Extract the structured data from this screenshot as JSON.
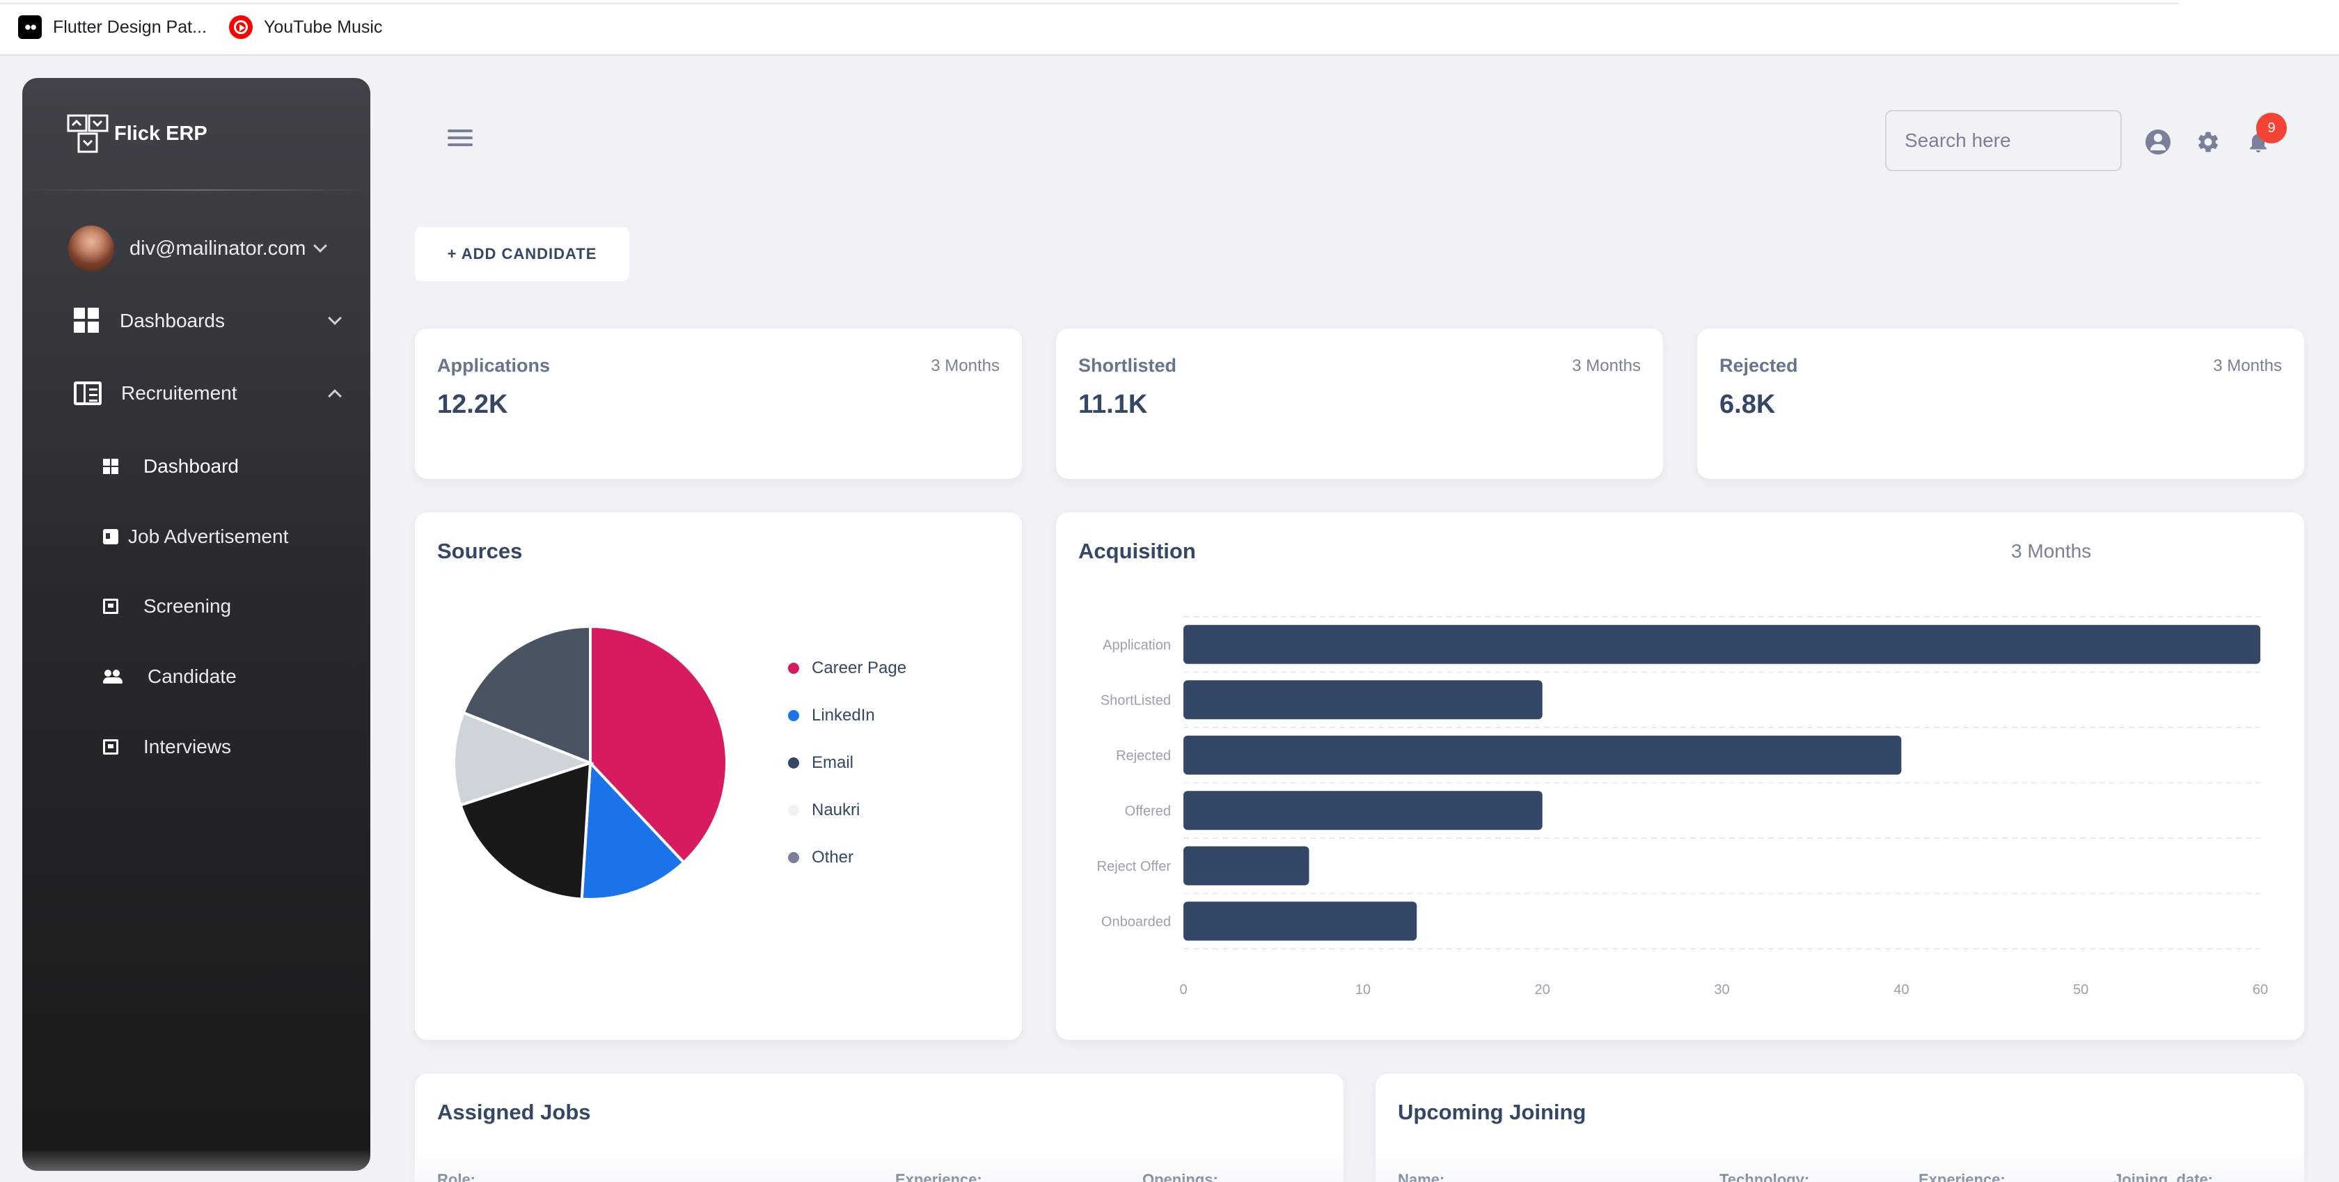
{
  "bookmarks": [
    {
      "label": "Flutter Design Pat...",
      "icon": "medium-icon"
    },
    {
      "label": "YouTube Music",
      "icon": "youtube-music-icon"
    }
  ],
  "sidebar": {
    "brand": "Flick ERP",
    "user_email": "div@mailinator.com",
    "items": [
      {
        "label": "Dashboards",
        "icon": "dashboard-icon"
      },
      {
        "label": "Recruitement",
        "icon": "recruitment-icon"
      }
    ],
    "subitems": [
      {
        "label": "Dashboard",
        "icon": "dashboard-small-icon",
        "active": true
      },
      {
        "label": "Job Advertisement",
        "icon": "card-icon"
      },
      {
        "label": "Screening",
        "icon": "frame-icon"
      },
      {
        "label": "Candidate",
        "icon": "people-icon"
      },
      {
        "label": "Interviews",
        "icon": "frame-icon"
      }
    ]
  },
  "header": {
    "search_placeholder": "Search here",
    "notification_count": "9"
  },
  "add_candidate_label": "+ ADD CANDIDATE",
  "stats": [
    {
      "title": "Applications",
      "period": "3 Months",
      "value": "12.2K"
    },
    {
      "title": "Shortlisted",
      "period": "3 Months",
      "value": "11.1K"
    },
    {
      "title": "Rejected",
      "period": "3 Months",
      "value": "6.8K"
    }
  ],
  "sources": {
    "title": "Sources"
  },
  "acquisition": {
    "title": "Acquisition",
    "period": "3 Months"
  },
  "assigned_jobs": {
    "title": "Assigned Jobs",
    "columns": [
      "Role:",
      "Experience:",
      "Openings:"
    ]
  },
  "upcoming_joining": {
    "title": "Upcoming Joining",
    "columns": [
      "Name:",
      "Technology:",
      "Experience:",
      "Joining_date:"
    ]
  },
  "colors": {
    "career_page": "#d81b60",
    "linkedin": "#1a73e8",
    "email": "#344767",
    "naukri": "#f0f2f5",
    "other": "#7b809a",
    "bar": "#344767"
  },
  "chart_data": [
    {
      "type": "pie",
      "title": "Sources",
      "categories": [
        "Career Page",
        "LinkedIn",
        "Email",
        "Naukri",
        "Other"
      ],
      "values": [
        38,
        13,
        19,
        11,
        19
      ],
      "slice_colors": [
        "#d81b60",
        "#1a73e8",
        "#191919",
        "#ced4da",
        "#495361"
      ],
      "legend_colors": [
        "#d81b60",
        "#1a73e8",
        "#344767",
        "#f0f2f5",
        "#7b809a"
      ],
      "legend": "right"
    },
    {
      "type": "bar",
      "orientation": "horizontal",
      "title": "Acquisition",
      "categories": [
        "Application",
        "ShortListed",
        "Rejected",
        "Offered",
        "Reject Offer",
        "Onboarded"
      ],
      "values": [
        60,
        20,
        40,
        20,
        7,
        13
      ],
      "xlim": [
        0,
        60
      ],
      "xticks": [
        0,
        10,
        20,
        30,
        40,
        50,
        60
      ],
      "grid": true
    }
  ]
}
